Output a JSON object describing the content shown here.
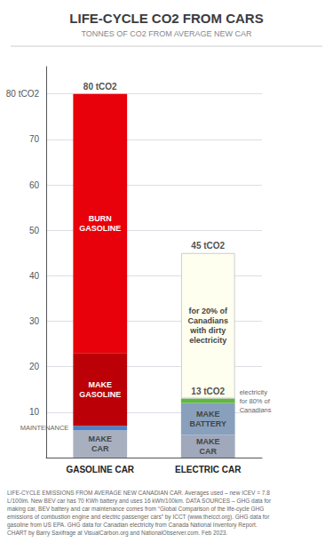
{
  "chart_data": {
    "type": "bar",
    "stacked": true,
    "title": "LIFE-CYCLE CO2 FROM CARS",
    "subtitle": "TONNES OF CO2 FROM AVERAGE NEW CAR",
    "categories": [
      "GASOLINE CAR",
      "ELECTRIC CAR"
    ],
    "series": [
      {
        "name": "MAKE\nCAR",
        "values": [
          6,
          5
        ],
        "colors": [
          "#a8b0c0",
          "#a0a8bc"
        ]
      },
      {
        "name": "MAINTENANCE",
        "values": [
          1,
          null
        ],
        "color": "#5080c8"
      },
      {
        "name": "MAKE\nBATTERY",
        "values": [
          null,
          7
        ],
        "color": "#88a0bc"
      },
      {
        "name": "MAKE\nGASOLINE",
        "values": [
          16,
          null
        ],
        "color": "#bb0008"
      },
      {
        "name": "BURN\nGASOLINE",
        "values": [
          57,
          null
        ],
        "color": "#e8000a"
      },
      {
        "name": "electricity\nfor 80% of\nCanadians",
        "values": [
          null,
          1
        ],
        "color": "#60b840"
      },
      {
        "name": "for 20% of\nCanadians\nwith dirty\nelectricity",
        "values": [
          null,
          32
        ],
        "color": "#fffff0"
      }
    ],
    "annotations": [
      {
        "text": "80 tCO2",
        "category": "GASOLINE CAR",
        "y": 80
      },
      {
        "text": "13 tCO2",
        "category": "ELECTRIC CAR",
        "y": 13
      },
      {
        "text": "45 tCO2",
        "category": "ELECTRIC CAR",
        "y": 45
      }
    ],
    "ylim": [
      0,
      86
    ],
    "yticks": [
      10,
      20,
      30,
      40,
      50,
      60,
      70,
      {
        "value": 80,
        "label": "80 tCO2"
      }
    ],
    "grid": true,
    "footnote": "LIFE-CYCLE EMISSIONS FROM AVERAGE NEW CANADIAN CAR. Averages used – new ICEV = 7.8\nL/100lm. New BEV car has 70 KWh battery and uses 16 kWh/100km. DATA SOURCES – GHG data for\nmaking car, BEV battery and car maintenance comes from “Global Comparison of the life-cycle GHG\nemissions of combustion engine and electric passenger cars” by ICCT (www.theicct.org). GHG data for\ngasoline from US EPA. GHG data for Canadian electricity from Canada National Inventory Report.\nCHART by Barry Saxifrage at VisualCarbon.org and NationalObserver.com. Feb 2023."
  }
}
